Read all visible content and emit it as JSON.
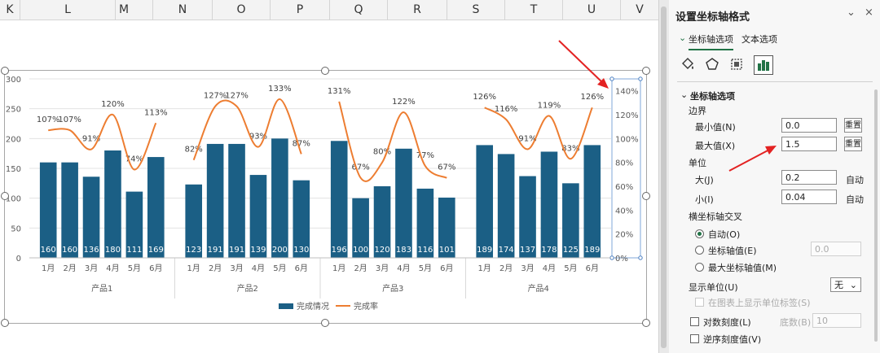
{
  "columns": [
    "K",
    "L",
    "M",
    "N",
    "O",
    "P",
    "Q",
    "R",
    "S",
    "T",
    "U",
    "V"
  ],
  "chart_data": {
    "type": "bar",
    "groups": [
      {
        "name": "产品1",
        "months": [
          "1月",
          "2月",
          "3月",
          "4月",
          "5月",
          "6月"
        ],
        "bars": [
          160,
          160,
          136,
          180,
          111,
          169
        ],
        "rates": [
          107,
          107,
          91,
          120,
          74,
          113
        ]
      },
      {
        "name": "产品2",
        "months": [
          "1月",
          "2月",
          "3月",
          "4月",
          "5月",
          "6月"
        ],
        "bars": [
          123,
          191,
          191,
          139,
          200,
          130
        ],
        "rates": [
          82,
          127,
          127,
          93,
          133,
          87
        ]
      },
      {
        "name": "产品3",
        "months": [
          "1月",
          "2月",
          "3月",
          "4月",
          "5月",
          "6月"
        ],
        "bars": [
          196,
          100,
          120,
          183,
          116,
          101
        ],
        "rates": [
          131,
          67,
          80,
          122,
          77,
          67
        ]
      },
      {
        "name": "产品4",
        "months": [
          "1月",
          "2月",
          "3月",
          "4月",
          "5月",
          "6月"
        ],
        "bars": [
          189,
          174,
          137,
          178,
          125,
          189
        ],
        "rates": [
          126,
          116,
          91,
          119,
          83,
          126
        ]
      }
    ],
    "y_left": {
      "min": 0,
      "max": 300,
      "ticks": [
        "0",
        "50",
        "100",
        "150",
        "200",
        "250",
        "300"
      ]
    },
    "y_right": {
      "min": 0,
      "max": 150,
      "ticks": [
        "0%",
        "20%",
        "40%",
        "60%",
        "80%",
        "100%",
        "120%",
        "140%"
      ]
    },
    "series": [
      {
        "name": "完成情况",
        "color": "#1b5f85"
      },
      {
        "name": "完成率",
        "color": "#ed7d31"
      }
    ],
    "legend_position": "bottom",
    "grid": true
  },
  "panel": {
    "title": "设置坐标轴格式",
    "collapse_label": "⌄",
    "close_label": "×",
    "tab_axis": "坐标轴选项",
    "tab_text": "文本选项",
    "section_title": "坐标轴选项",
    "bounds_label": "边界",
    "min_label": "最小值(N)",
    "min_value": "0.0",
    "max_label": "最大值(X)",
    "max_value": "1.5",
    "reset_label": "重置",
    "units_label": "单位",
    "major_label": "大(J)",
    "major_value": "0.2",
    "minor_label": "小(I)",
    "minor_value": "0.04",
    "auto_label": "自动",
    "cross_label": "横坐标轴交叉",
    "cross_auto": "自动(O)",
    "cross_value_label": "坐标轴值(E)",
    "cross_value": "0.0",
    "cross_max": "最大坐标轴值(M)",
    "display_units_label": "显示单位(U)",
    "display_units_value": "无",
    "show_units_label": "在图表上显示单位标签(S)",
    "log_scale_label": "对数刻度(L)",
    "base_label": "底数(B)",
    "base_value": "10",
    "reverse_label": "逆序刻度值(V)"
  }
}
